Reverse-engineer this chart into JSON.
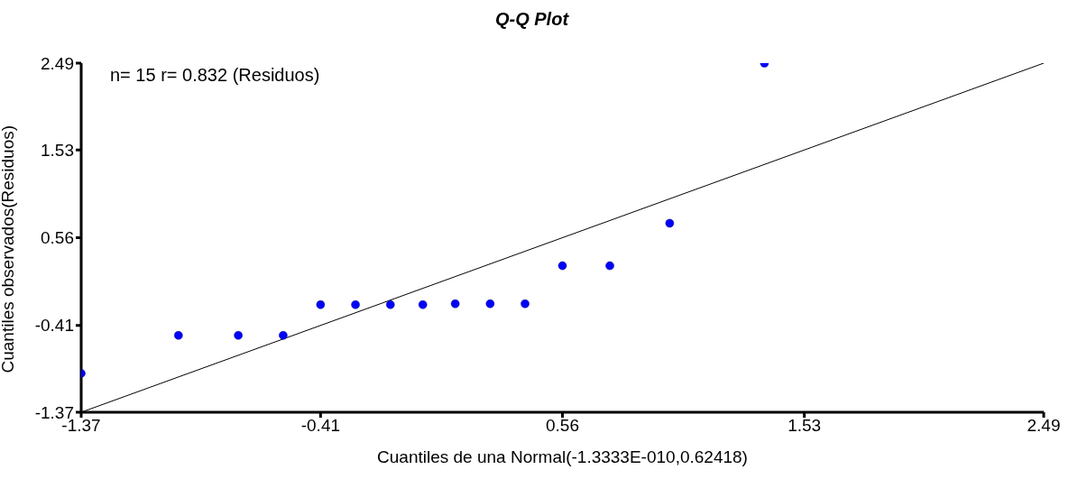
{
  "chart_data": {
    "type": "scatter",
    "title": "Q-Q Plot",
    "xlabel": "Cuantiles de una Normal(-1.3333E-010,0.62418)",
    "ylabel": "Cuantiles observados(Residuos)",
    "annotations": [
      "n= 15 r= 0.832 (Residuos)"
    ],
    "x": [
      -1.37,
      -0.98,
      -0.74,
      -0.56,
      -0.41,
      -0.27,
      -0.13,
      0.0,
      0.13,
      0.27,
      0.41,
      0.56,
      0.75,
      0.99,
      1.37
    ],
    "series": [
      {
        "color": "#0000ff",
        "values": [
          -0.94,
          -0.52,
          -0.52,
          -0.52,
          -0.18,
          -0.18,
          -0.18,
          -0.18,
          -0.17,
          -0.17,
          -0.17,
          0.25,
          0.25,
          0.72,
          2.49
        ]
      },
      {
        "type": "line",
        "marker": "none",
        "color": "#000000",
        "x": [
          -1.37,
          2.49
        ],
        "values": [
          -1.37,
          2.49
        ]
      }
    ],
    "xlim": [
      -1.37,
      2.49
    ],
    "ylim": [
      -1.37,
      2.49
    ],
    "xticks": [
      -1.37,
      -0.41,
      0.56,
      1.53,
      2.49
    ],
    "yticks": [
      -1.37,
      -0.41,
      0.56,
      1.53,
      2.49
    ],
    "grid": false,
    "legend": false,
    "marker": "circle"
  }
}
